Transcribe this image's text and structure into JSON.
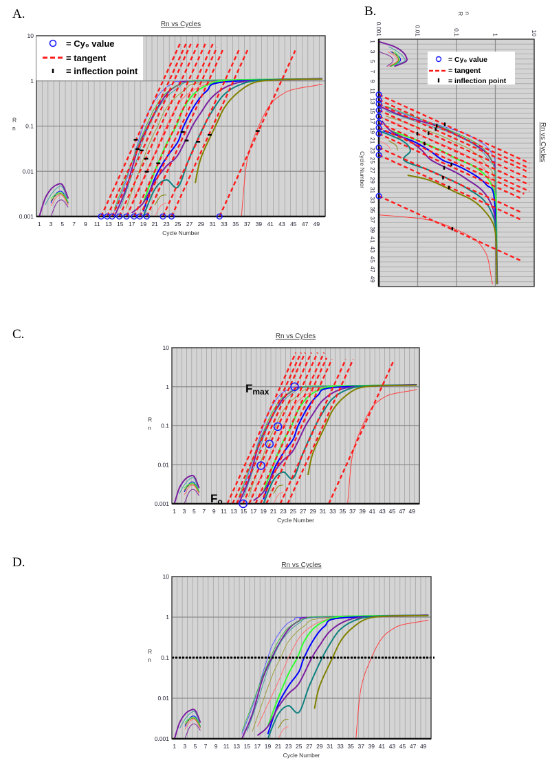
{
  "panels": [
    {
      "id": "A",
      "label": "A."
    },
    {
      "id": "B",
      "label": "B."
    },
    {
      "id": "C",
      "label": "C."
    },
    {
      "id": "D",
      "label": "D."
    }
  ],
  "legend": {
    "cy0": "= Cy₀ value",
    "tangent": "= tangent",
    "inflection": "= inflection point"
  },
  "annotations": {
    "fmax": {
      "main": "F",
      "sub": "max"
    },
    "fo": {
      "main": "F",
      "sub": "o"
    }
  },
  "chart_data": {
    "type": "line",
    "title": "Rn vs Cycles",
    "xlabel": "Cycle Number",
    "ylabel": "R n",
    "xlim": [
      0.5,
      50.5
    ],
    "ylim": [
      0.001,
      10
    ],
    "yscale": "log",
    "grid": true,
    "x_ticks": [
      1,
      3,
      5,
      7,
      9,
      11,
      13,
      15,
      17,
      19,
      21,
      23,
      25,
      27,
      29,
      31,
      33,
      35,
      37,
      39,
      41,
      43,
      45,
      47,
      49
    ],
    "y_ticks": [
      "0.001",
      "0.01",
      "0.1",
      "1",
      "10"
    ],
    "colors": {
      "tangent": "#ff1a1a",
      "cy0_marker": "#1a1aff",
      "inflection": "#000000",
      "background": "#d4d4d4"
    },
    "series": [
      {
        "color": "#5a5aff",
        "points": [
          [
            14,
            0.0013
          ],
          [
            16,
            0.006
          ],
          [
            18,
            0.04
          ],
          [
            19,
            0.1
          ],
          [
            20,
            0.22
          ],
          [
            22,
            0.55
          ],
          [
            24,
            0.85
          ],
          [
            27,
            1.0
          ],
          [
            50,
            1.1
          ]
        ]
      },
      {
        "color": "#7a1fa0",
        "points": [
          [
            14,
            0.001
          ],
          [
            16,
            0.004
          ],
          [
            18,
            0.03
          ],
          [
            19.8,
            0.1
          ],
          [
            21,
            0.2
          ],
          [
            23,
            0.5
          ],
          [
            25,
            0.8
          ],
          [
            28,
            1.0
          ],
          [
            50,
            1.12
          ]
        ]
      },
      {
        "color": "#40c040",
        "points": [
          [
            14,
            0.0015
          ],
          [
            16,
            0.007
          ],
          [
            18,
            0.035
          ],
          [
            19.5,
            0.1
          ],
          [
            21,
            0.25
          ],
          [
            23,
            0.55
          ],
          [
            26,
            0.9
          ],
          [
            30,
            1.05
          ],
          [
            50,
            1.1
          ]
        ]
      },
      {
        "color": "#40a0a0",
        "points": [
          [
            15,
            0.0015
          ],
          [
            17,
            0.008
          ],
          [
            19,
            0.05
          ],
          [
            20,
            0.1
          ],
          [
            22,
            0.3
          ],
          [
            25,
            0.7
          ],
          [
            29,
            1.0
          ],
          [
            50,
            1.1
          ]
        ]
      },
      {
        "color": "#a0a040",
        "points": [
          [
            16,
            0.0015
          ],
          [
            18,
            0.008
          ],
          [
            20,
            0.04
          ],
          [
            21.5,
            0.1
          ],
          [
            23,
            0.25
          ],
          [
            26,
            0.6
          ],
          [
            30,
            0.95
          ],
          [
            50,
            1.1
          ]
        ]
      },
      {
        "color": "#ff7070",
        "points": [
          [
            17,
            0.002
          ],
          [
            19,
            0.007
          ],
          [
            21,
            0.025
          ],
          [
            23,
            0.1
          ],
          [
            25,
            0.3
          ],
          [
            27,
            0.55
          ],
          [
            30,
            0.85
          ],
          [
            34,
            1.0
          ],
          [
            50,
            1.1
          ]
        ]
      },
      {
        "color": "#30ff30",
        "points": [
          [
            19,
            0.002
          ],
          [
            21,
            0.01
          ],
          [
            23,
            0.04
          ],
          [
            24.7,
            0.1
          ],
          [
            26,
            0.25
          ],
          [
            28,
            0.55
          ],
          [
            31,
            0.9
          ],
          [
            35,
            1.05
          ],
          [
            50,
            1.1
          ]
        ]
      },
      {
        "color": "#0000ff",
        "points": [
          [
            19,
            0.0013
          ],
          [
            21,
            0.007
          ],
          [
            23,
            0.02
          ],
          [
            25,
            0.045
          ],
          [
            26,
            0.1
          ],
          [
            28,
            0.3
          ],
          [
            30,
            0.6
          ],
          [
            33,
            0.95
          ],
          [
            50,
            1.12
          ]
        ]
      },
      {
        "color": "#7a1fa0",
        "points": [
          [
            17,
            0.0012
          ],
          [
            19,
            0.002
          ],
          [
            21,
            0.006
          ],
          [
            23,
            0.013
          ],
          [
            25,
            0.023
          ],
          [
            27.5,
            0.1
          ],
          [
            29,
            0.2
          ],
          [
            31,
            0.45
          ],
          [
            34,
            0.8
          ],
          [
            38,
            1.0
          ],
          [
            50,
            1.1
          ]
        ]
      },
      {
        "color": "#108080",
        "points": [
          [
            19,
            0.001
          ],
          [
            21,
            0.004
          ],
          [
            23,
            0.0065
          ],
          [
            25,
            0.0045
          ],
          [
            27,
            0.02
          ],
          [
            29.5,
            0.1
          ],
          [
            31,
            0.22
          ],
          [
            33,
            0.5
          ],
          [
            36,
            0.85
          ],
          [
            40,
            1.05
          ],
          [
            50,
            1.1
          ]
        ]
      },
      {
        "color": "#808000",
        "points": [
          [
            28,
            0.0055
          ],
          [
            29,
            0.02
          ],
          [
            31.5,
            0.1
          ],
          [
            33,
            0.25
          ],
          [
            35,
            0.5
          ],
          [
            38,
            0.9
          ],
          [
            42,
            1.05
          ],
          [
            50,
            1.1
          ]
        ]
      },
      {
        "color": "#ff4040",
        "points": [
          [
            36,
            0.001
          ],
          [
            37,
            0.018
          ],
          [
            39,
            0.1
          ],
          [
            41,
            0.3
          ],
          [
            43,
            0.5
          ],
          [
            45,
            0.65
          ],
          [
            49,
            0.8
          ],
          [
            50,
            0.85
          ]
        ]
      },
      {
        "color": "#808000",
        "points": [
          [
            21,
            0.0018
          ],
          [
            22,
            0.0028
          ],
          [
            23,
            0.003
          ]
        ]
      },
      {
        "color": "#ff8080",
        "points": [
          [
            21,
            0.001
          ],
          [
            22,
            0.0017
          ],
          [
            23,
            0.002
          ]
        ]
      },
      {
        "color": "#7a1fa0",
        "points": [
          [
            1,
            0.001
          ],
          [
            2,
            0.0025
          ],
          [
            3,
            0.004
          ],
          [
            4,
            0.005
          ],
          [
            5,
            0.005
          ],
          [
            6,
            0.0025
          ]
        ]
      },
      {
        "color": "#40a0a0",
        "points": [
          [
            2,
            0.0018
          ],
          [
            3,
            0.003
          ],
          [
            4,
            0.0042
          ],
          [
            5,
            0.0045
          ],
          [
            6,
            0.002
          ]
        ]
      },
      {
        "color": "#0000ff",
        "points": [
          [
            3,
            0.002
          ],
          [
            4,
            0.0033
          ],
          [
            5,
            0.0035
          ],
          [
            6,
            0.002
          ]
        ]
      },
      {
        "color": "#808000",
        "points": [
          [
            3,
            0.0022
          ],
          [
            4,
            0.003
          ],
          [
            5,
            0.0031
          ],
          [
            6,
            0.0019
          ]
        ]
      },
      {
        "color": "#ff7070",
        "points": [
          [
            3,
            0.0017
          ],
          [
            4,
            0.0027
          ],
          [
            5,
            0.0029
          ],
          [
            6,
            0.0018
          ]
        ]
      },
      {
        "color": "#30ff30",
        "points": [
          [
            3,
            0.0025
          ],
          [
            4,
            0.0032
          ],
          [
            5,
            0.0033
          ],
          [
            6,
            0.0021
          ]
        ]
      },
      {
        "color": "#7a1fa0",
        "points": [
          [
            3,
            0.001
          ],
          [
            4,
            0.002
          ],
          [
            5,
            0.0023
          ],
          [
            6,
            0.0016
          ]
        ]
      }
    ],
    "tangents": {
      "slope_decades_per_cycle": 0.28,
      "lines": [
        {
          "cy0": 11.7,
          "end_rn": 7.5
        },
        {
          "cy0": 12.75,
          "end_rn": 7.5
        },
        {
          "cy0": 13.6,
          "end_rn": 7.5
        },
        {
          "cy0": 14.85,
          "end_rn": 7.5
        },
        {
          "cy0": 16.1,
          "end_rn": 7.5
        },
        {
          "cy0": 17.4,
          "end_rn": 7.5
        },
        {
          "cy0": 18.4,
          "end_rn": 5.5
        },
        {
          "cy0": 19.6,
          "end_rn": 5
        },
        {
          "cy0": 22.4,
          "end_rn": 5
        },
        {
          "cy0": 23.9,
          "end_rn": 5
        },
        {
          "cy0": 32.2,
          "end_rn": 4.7
        }
      ]
    },
    "inflection_points": [
      [
        17.7,
        0.05
      ],
      [
        18.0,
        0.031
      ],
      [
        18.7,
        0.029
      ],
      [
        19.5,
        0.019
      ],
      [
        19.6,
        0.0098
      ],
      [
        21.6,
        0.015
      ],
      [
        25.8,
        0.074
      ],
      [
        26.5,
        0.048
      ],
      [
        28.5,
        0.045
      ],
      [
        30.5,
        0.064
      ],
      [
        38.8,
        0.078
      ]
    ],
    "panel_C_circles": [
      [
        14.9,
        0.001
      ],
      [
        18.5,
        0.0095
      ],
      [
        20.2,
        0.034
      ],
      [
        21.9,
        0.095
      ],
      [
        25.3,
        1.0
      ]
    ],
    "panel_D_threshold": 0.1,
    "panel_B_orientation": "rotated 90° clockwise (cycles downward, Rn rightward)"
  }
}
